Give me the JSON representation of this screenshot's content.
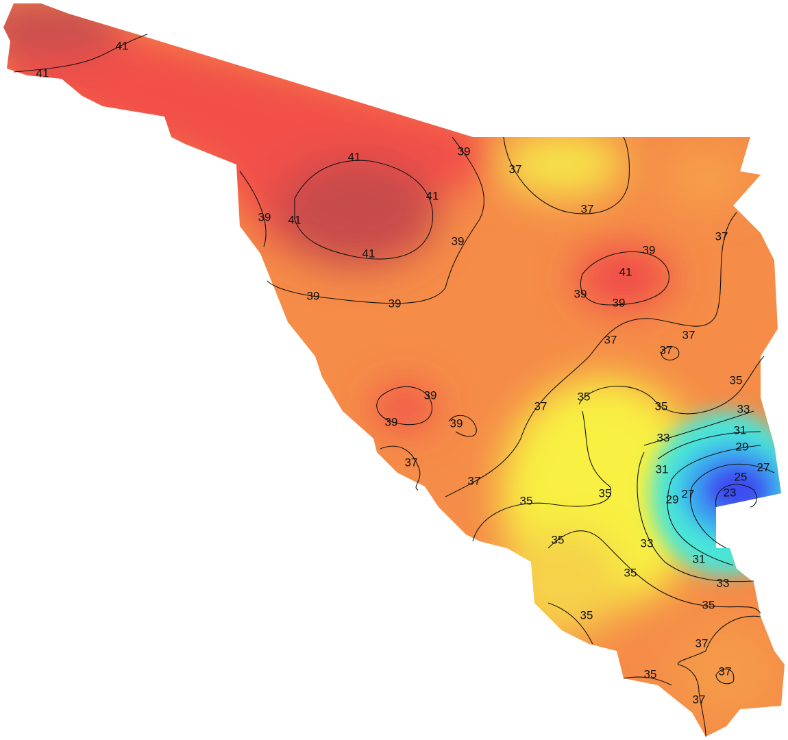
{
  "contour_labels": [
    41,
    41,
    41,
    41,
    41,
    41,
    39,
    39,
    39,
    39,
    39,
    39,
    41,
    39,
    39,
    37,
    37,
    37,
    37,
    37,
    37,
    39,
    39,
    39,
    37,
    37,
    37,
    35,
    35,
    35,
    33,
    31,
    29,
    27,
    25,
    23,
    33,
    31,
    29,
    27,
    35,
    35,
    35,
    33,
    31,
    35,
    33,
    35,
    35,
    37,
    37,
    35,
    37
  ]
}
